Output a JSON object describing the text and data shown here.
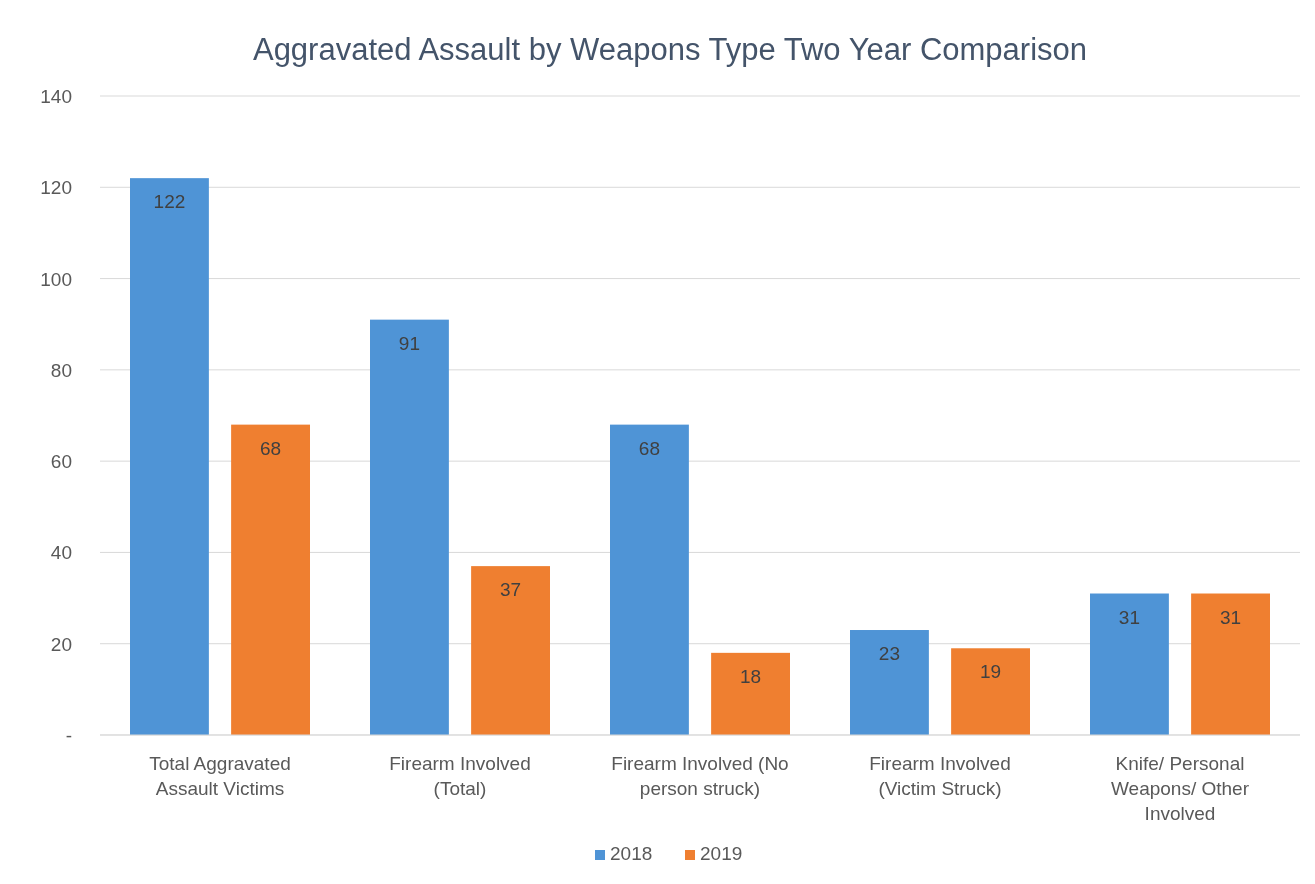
{
  "chart_data": {
    "type": "bar",
    "title": "Aggravated Assault by Weapons Type Two Year Comparison",
    "categories": [
      "Total Aggravated Assault Victims",
      "Firearm Involved (Total)",
      "Firearm Involved (No person struck)",
      "Firearm Involved (Victim Struck)",
      "Knife/ Personal Weapons/ Other Involved"
    ],
    "series": [
      {
        "name": "2018",
        "color": "#4f94d6",
        "values": [
          122,
          91,
          68,
          23,
          31
        ]
      },
      {
        "name": "2019",
        "color": "#ef7f30",
        "values": [
          68,
          37,
          18,
          19,
          31
        ]
      }
    ],
    "ylim": [
      0,
      140
    ],
    "yticks": [
      {
        "value": 0,
        "label": "-"
      },
      20,
      40,
      60,
      80,
      100,
      120,
      140
    ],
    "grid": "y",
    "legend": "bottom",
    "data_labels": true
  }
}
